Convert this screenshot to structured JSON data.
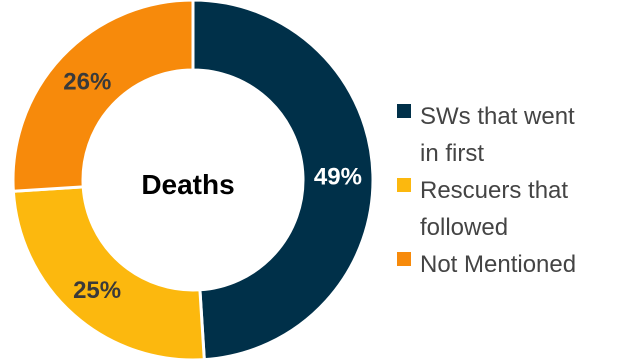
{
  "chart_data": {
    "type": "pie",
    "center_label": "Deaths",
    "slices": [
      {
        "label_lines": [
          "SWs that went",
          "in first"
        ],
        "value": 49,
        "display": "49%",
        "color": "#003049"
      },
      {
        "label_lines": [
          "Rescuers that",
          "followed"
        ],
        "value": 25,
        "display": "25%",
        "color": "#FCB80E"
      },
      {
        "label_lines": [
          "Not Mentioned"
        ],
        "value": 26,
        "display": "26%",
        "color": "#F78A0B"
      }
    ],
    "legend_position": "right",
    "label_colors": {
      "0": "#ffffff",
      "1": "#3a3a3a",
      "2": "#3a3a3a"
    }
  }
}
